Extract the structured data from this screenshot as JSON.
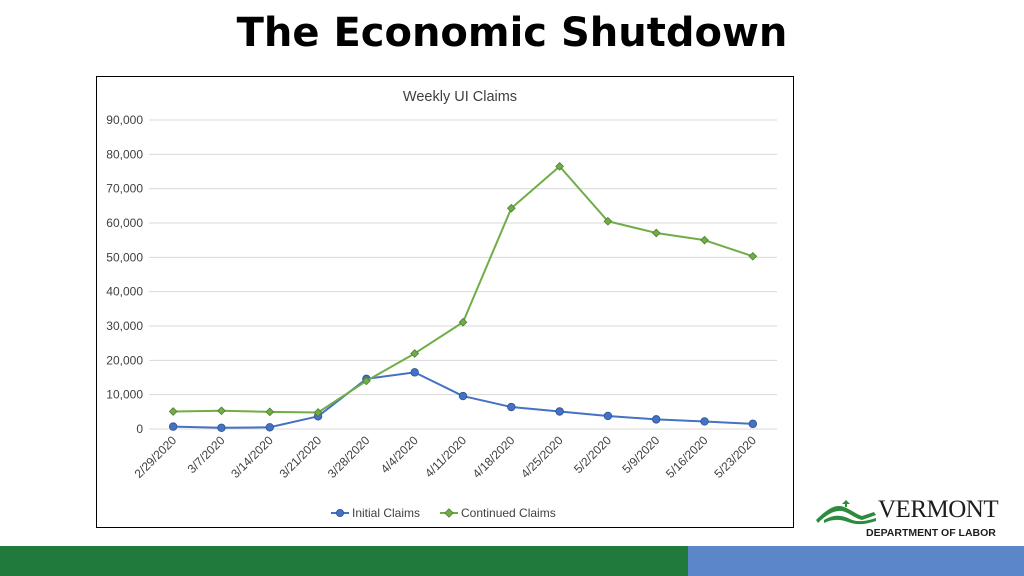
{
  "slide": {
    "title": "The Economic Shutdown"
  },
  "logo": {
    "word": "VERMONT",
    "subtitle": "DEPARTMENT OF LABOR"
  },
  "colors": {
    "initial": "#4472c4",
    "continued": "#70ad47",
    "grid": "#d9d9d9",
    "footer_green": "#1f7a3b",
    "footer_blue": "#5b87c8"
  },
  "chart_data": {
    "type": "line",
    "title": "Weekly UI Claims",
    "categories": [
      "2/29/2020",
      "3/7/2020",
      "3/14/2020",
      "3/21/2020",
      "3/28/2020",
      "4/4/2020",
      "4/11/2020",
      "4/18/2020",
      "4/25/2020",
      "5/2/2020",
      "5/9/2020",
      "5/16/2020",
      "5/23/2020"
    ],
    "series": [
      {
        "name": "Initial Claims",
        "marker": "circle",
        "values": [
          700,
          350,
          500,
          3700,
          14600,
          16500,
          9600,
          6400,
          5100,
          3800,
          2800,
          2200,
          1500
        ]
      },
      {
        "name": "Continued Claims",
        "marker": "diamond",
        "values": [
          5100,
          5300,
          5000,
          4800,
          14000,
          22000,
          31100,
          64300,
          76500,
          60500,
          57100,
          55000,
          50300
        ]
      }
    ],
    "ylim": [
      0,
      90000
    ],
    "yticks": [
      "0",
      "10,000",
      "20,000",
      "30,000",
      "40,000",
      "50,000",
      "60,000",
      "70,000",
      "80,000",
      "90,000"
    ],
    "ytick_values": [
      0,
      10000,
      20000,
      30000,
      40000,
      50000,
      60000,
      70000,
      80000,
      90000
    ],
    "grid": true,
    "legend": "bottom"
  }
}
